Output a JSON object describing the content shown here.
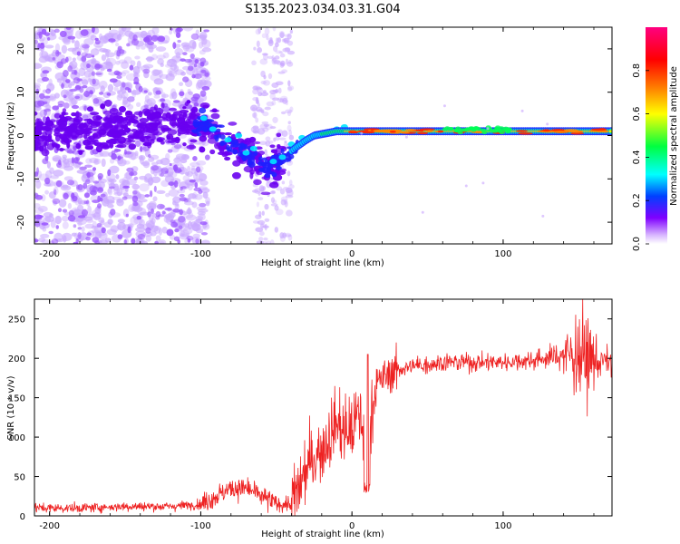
{
  "title": "S135.2023.034.03.31.G04",
  "chart_data": [
    {
      "type": "heatmap",
      "xlabel": "Height of straight line (km)",
      "ylabel": "Frequency (Hz)",
      "xlim": [
        -210,
        172
      ],
      "ylim": [
        -25,
        25
      ],
      "xticks": [
        -200,
        -100,
        0,
        100
      ],
      "yticks": [
        -20,
        -10,
        0,
        10,
        20
      ],
      "colorbar": {
        "label": "Normalized spectral amplitude",
        "range": [
          0,
          1
        ],
        "ticks": [
          "0.0",
          "0.2",
          "0.4",
          "0.6",
          "0.8"
        ],
        "colors": [
          "#ffffff",
          "#d9b8ff",
          "#7f00ff",
          "#0040ff",
          "#00ffff",
          "#00ff40",
          "#ffff00",
          "#ff7f00",
          "#ff0000",
          "#ff0080"
        ]
      },
      "ridge": [
        {
          "x": -200,
          "y": 0.5
        },
        {
          "x": -100,
          "y": 3
        },
        {
          "x": -90,
          "y": 0.5
        },
        {
          "x": -80,
          "y": -3
        },
        {
          "x": -70,
          "y": -4
        },
        {
          "x": -60,
          "y": -7
        },
        {
          "x": -50,
          "y": -7
        },
        {
          "x": -45,
          "y": -5
        },
        {
          "x": -38,
          "y": -3
        },
        {
          "x": -30,
          "y": -1
        },
        {
          "x": -25,
          "y": 0
        },
        {
          "x": -10,
          "y": 1
        },
        {
          "x": 0,
          "y": 1
        },
        {
          "x": 50,
          "y": 1
        },
        {
          "x": 100,
          "y": 1
        },
        {
          "x": 172,
          "y": 1
        }
      ]
    },
    {
      "type": "line",
      "xlabel": "Height of straight line (km)",
      "ylabel": "SNR (10 * v/v)",
      "xlim": [
        -210,
        172
      ],
      "ylim": [
        0,
        275
      ],
      "xticks": [
        -200,
        -100,
        0,
        100
      ],
      "yticks": [
        0,
        50,
        100,
        150,
        200,
        250
      ],
      "color": "#ee2222",
      "series": [
        {
          "x": [
            -210,
            -180,
            -150,
            -120,
            -100,
            -90,
            -80,
            -70,
            -60,
            -50,
            -40,
            -35,
            -30,
            -25,
            -20,
            -15,
            -10,
            -5,
            0,
            5,
            10,
            15,
            20,
            25,
            30,
            40,
            60,
            80,
            100,
            120,
            130,
            140,
            150,
            160,
            172
          ],
          "y": [
            10,
            10,
            12,
            12,
            15,
            25,
            35,
            35,
            25,
            15,
            15,
            35,
            60,
            75,
            85,
            100,
            120,
            105,
            110,
            130,
            90,
            160,
            175,
            180,
            185,
            190,
            195,
            195,
            195,
            198,
            200,
            205,
            205,
            198,
            195
          ]
        }
      ]
    }
  ]
}
